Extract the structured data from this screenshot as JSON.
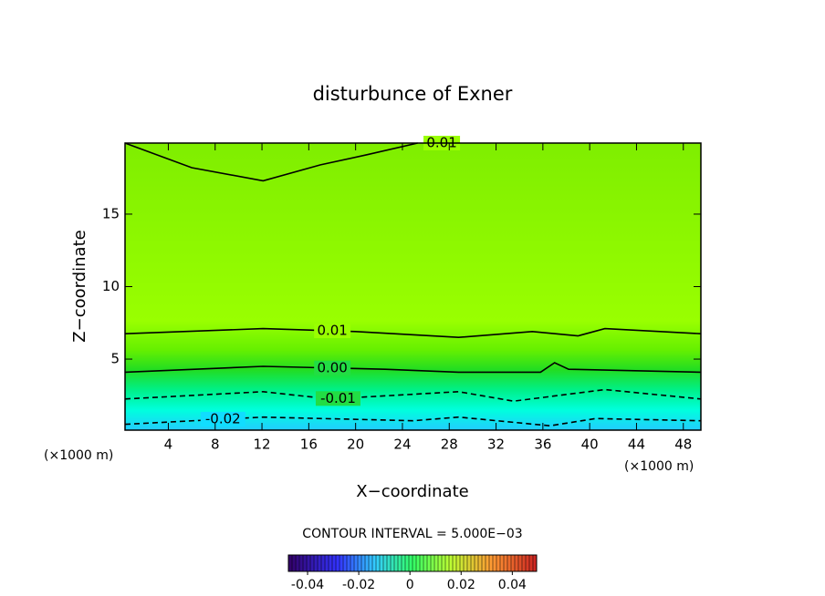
{
  "chart_data": {
    "type": "contour",
    "title": "disturbunce of Exner",
    "x_label": "X−coordinate",
    "y_label": "Z−coordinate",
    "x_unit": "(×1000 m)",
    "y_unit": "(×1000 m)",
    "xlim": [
      0.3,
      49.5
    ],
    "xticks": [
      4,
      8,
      12,
      16,
      20,
      24,
      28,
      32,
      36,
      40,
      44,
      48
    ],
    "ylim": [
      0.1,
      19.9
    ],
    "yticks": [
      5,
      10,
      15
    ],
    "contours": [
      {
        "level": 0.01,
        "label": "0.01",
        "style": "solid",
        "x": [
          0.3,
          6,
          12.1,
          17,
          21,
          25.3
        ],
        "y": [
          19.9,
          18.2,
          17.3,
          18.4,
          19.1,
          19.9
        ]
      },
      {
        "level": 0.01,
        "label": "0.01",
        "style": "solid",
        "x": [
          0.3,
          12.1,
          20,
          28.8,
          35.1,
          39.0,
          41.3,
          49.5
        ],
        "y": [
          6.75,
          7.1,
          6.9,
          6.5,
          6.9,
          6.6,
          7.1,
          6.75
        ]
      },
      {
        "level": 0.0,
        "label": "0.00",
        "style": "solid",
        "x": [
          0.3,
          12.1,
          22.5,
          28.8,
          35.8,
          37.0,
          38.2,
          49.5
        ],
        "y": [
          4.1,
          4.5,
          4.3,
          4.1,
          4.1,
          4.75,
          4.3,
          4.1
        ]
      },
      {
        "level": -0.01,
        "label": "-0.01",
        "style": "dashed",
        "x": [
          0.3,
          12.1,
          17.8,
          28.8,
          33.5,
          41.3,
          49.5
        ],
        "y": [
          2.25,
          2.75,
          2.25,
          2.75,
          2.1,
          2.9,
          2.25
        ]
      },
      {
        "level": -0.02,
        "label": "-0.02",
        "style": "dashed",
        "x": [
          0.3,
          12.1,
          24.9,
          28.8,
          36.6,
          40.5,
          49.5
        ],
        "y": [
          0.5,
          1.0,
          0.75,
          1.0,
          0.4,
          0.9,
          0.75
        ]
      }
    ],
    "contour_interval_text": "CONTOUR INTERVAL = 5.000E−03",
    "colorbar": {
      "lim": [
        -0.0475,
        0.0495
      ],
      "ticks": [
        -0.04,
        -0.02,
        0,
        0.02,
        0.04
      ]
    }
  }
}
